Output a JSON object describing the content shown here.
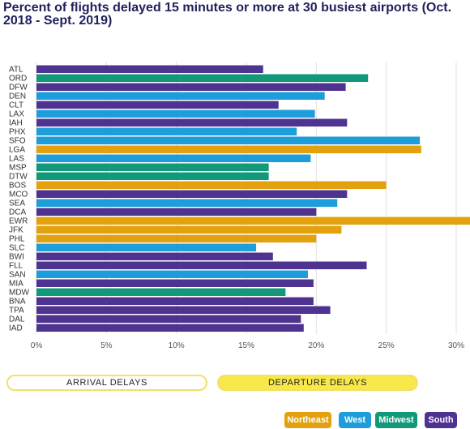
{
  "title": "Percent of flights delayed 15 minutes or more at 30 busiest airports (Oct. 2018 - Sept. 2019)",
  "toggles": {
    "arrival": "ARRIVAL DELAYS",
    "departure": "DEPARTURE DELAYS",
    "selected": "departure"
  },
  "colors": {
    "Northeast": "#e3a20d",
    "West": "#1e9ddb",
    "Midwest": "#12997a",
    "South": "#4f3390"
  },
  "legend": [
    "Northeast",
    "West",
    "Midwest",
    "South"
  ],
  "chart_data": {
    "type": "bar",
    "orientation": "horizontal",
    "title": "Percent of flights delayed 15 minutes or more at 30 busiest airports (Oct. 2018 - Sept. 2019)",
    "xlim": [
      0,
      30
    ],
    "xticks": [
      "0%",
      "5%",
      "10%",
      "15%",
      "20%",
      "25%",
      "30%"
    ],
    "grid": true,
    "categories": [
      "ATL",
      "ORD",
      "DFW",
      "DEN",
      "CLT",
      "LAX",
      "IAH",
      "PHX",
      "SFO",
      "LGA",
      "LAS",
      "MSP",
      "DTW",
      "BOS",
      "MCO",
      "SEA",
      "DCA",
      "EWR",
      "JFK",
      "PHL",
      "SLC",
      "BWI",
      "FLL",
      "SAN",
      "MIA",
      "MDW",
      "BNA",
      "TPA",
      "DAL",
      "IAD"
    ],
    "values": [
      16.2,
      23.7,
      22.1,
      20.6,
      17.3,
      19.9,
      22.2,
      18.6,
      27.4,
      27.5,
      19.6,
      16.6,
      16.6,
      25.0,
      22.2,
      21.5,
      20.0,
      31.0,
      21.8,
      20.0,
      15.7,
      16.9,
      23.6,
      19.4,
      19.8,
      17.8,
      19.8,
      21.0,
      18.9,
      19.1
    ],
    "regions": [
      "South",
      "Midwest",
      "South",
      "West",
      "South",
      "West",
      "South",
      "West",
      "West",
      "Northeast",
      "West",
      "Midwest",
      "Midwest",
      "Northeast",
      "South",
      "West",
      "South",
      "Northeast",
      "Northeast",
      "Northeast",
      "West",
      "South",
      "South",
      "West",
      "South",
      "Midwest",
      "South",
      "South",
      "South",
      "South"
    ]
  }
}
